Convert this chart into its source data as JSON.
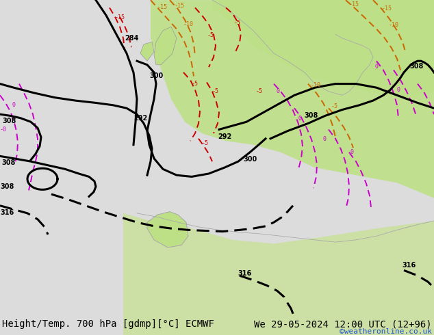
{
  "title_left": "Height/Temp. 700 hPa [gdmp][°C] ECMWF",
  "title_right": "We 29-05-2024 12:00 UTC (12+96)",
  "copyright": "©weatheronline.co.uk",
  "bg_land_color": "#c8e6a0",
  "bg_sea_color": "#e8e8e8",
  "bg_color": "#f0f0f0",
  "height_contour_color": "#000000",
  "height_contour_dash_color": "#000000",
  "temp_neg5_color": "#cc0000",
  "temp_neg10_color": "#cc6600",
  "temp_neg15_color": "#cc6600",
  "temp_0_color": "#cc00cc",
  "title_fontsize": 10,
  "copyright_fontsize": 8,
  "fig_width": 6.34,
  "fig_height": 4.9,
  "dpi": 100
}
